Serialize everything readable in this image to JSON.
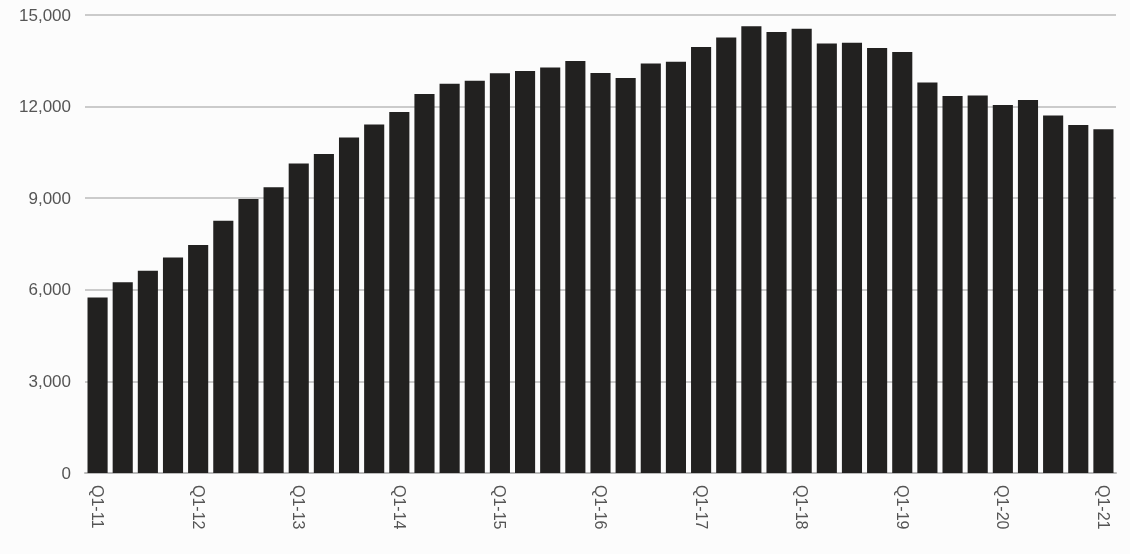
{
  "chart_data": {
    "type": "bar",
    "categories": [
      "Q1-11",
      null,
      null,
      null,
      "Q1-12",
      null,
      null,
      null,
      "Q1-13",
      null,
      null,
      null,
      "Q1-14",
      null,
      null,
      null,
      "Q1-15",
      null,
      null,
      null,
      "Q1-16",
      null,
      null,
      null,
      "Q1-17",
      null,
      null,
      null,
      "Q1-18",
      null,
      null,
      null,
      "Q1-19",
      null,
      null,
      null,
      "Q1-20",
      null,
      null,
      null,
      "Q1-21"
    ],
    "values": [
      5750,
      6250,
      6620,
      7060,
      7470,
      8260,
      8970,
      9360,
      10140,
      10450,
      10990,
      11410,
      11820,
      12410,
      12750,
      12850,
      13090,
      13170,
      13280,
      13490,
      13100,
      12940,
      13410,
      13470,
      13950,
      14260,
      14630,
      14440,
      14550,
      14070,
      14090,
      13920,
      13790,
      12790,
      12350,
      12360,
      12050,
      12220,
      11710,
      11400,
      11260
    ],
    "color": "#222120",
    "ylim": [
      0,
      15000
    ],
    "yticks": [
      0,
      {
        "value": 3000,
        "label": "3,000"
      },
      {
        "value": 6000,
        "label": "6,000"
      },
      {
        "value": 9000,
        "label": "9,000"
      },
      {
        "value": 12000,
        "label": "12,000"
      },
      {
        "value": 15000,
        "label": "15,000"
      }
    ],
    "grid": "y"
  }
}
